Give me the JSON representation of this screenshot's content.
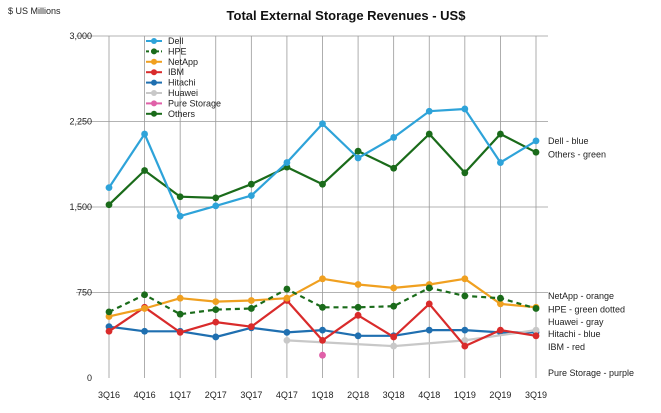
{
  "chart_data": {
    "type": "line",
    "title": "Total External Storage Revenues - US$",
    "ylabel": "$ US Millions",
    "xlabel": "",
    "ylim": [
      0,
      3000
    ],
    "yticks": [
      0,
      750,
      1500,
      2250,
      3000
    ],
    "ytick_labels": [
      "0",
      "750",
      "1,500",
      "2,250",
      "3,000"
    ],
    "categories": [
      "3Q16",
      "4Q16",
      "1Q17",
      "2Q17",
      "3Q17",
      "4Q17",
      "1Q18",
      "2Q18",
      "3Q18",
      "4Q18",
      "1Q19",
      "2Q19",
      "3Q19"
    ],
    "grid": true,
    "legend_position": "top-left",
    "series": [
      {
        "name": "Dell",
        "color": "#2ea3d9",
        "dash": false,
        "values": [
          1670,
          2140,
          1420,
          1510,
          1600,
          1890,
          2230,
          1930,
          2110,
          2340,
          2360,
          1890,
          2080
        ]
      },
      {
        "name": "HPE",
        "color": "#1a6b1a",
        "dash": true,
        "values": [
          580,
          730,
          560,
          600,
          610,
          780,
          620,
          620,
          630,
          790,
          720,
          700,
          610
        ]
      },
      {
        "name": "NetApp",
        "color": "#f0a020",
        "dash": false,
        "values": [
          540,
          610,
          700,
          670,
          680,
          700,
          870,
          820,
          790,
          820,
          870,
          650,
          620
        ]
      },
      {
        "name": "IBM",
        "color": "#d92b2b",
        "dash": false,
        "values": [
          410,
          620,
          400,
          490,
          450,
          680,
          330,
          550,
          360,
          650,
          280,
          420,
          370
        ]
      },
      {
        "name": "Hitachi",
        "color": "#1f6fb0",
        "dash": false,
        "values": [
          450,
          410,
          410,
          360,
          440,
          400,
          420,
          370,
          370,
          420,
          420,
          400,
          400
        ]
      },
      {
        "name": "Huawei",
        "color": "#c8c8c8",
        "dash": false,
        "values": [
          null,
          null,
          null,
          null,
          null,
          330,
          null,
          null,
          280,
          null,
          330,
          null,
          420
        ]
      },
      {
        "name": "Pure Storage",
        "color": "#e060a8",
        "dash": false,
        "values": [
          null,
          null,
          null,
          null,
          null,
          null,
          200,
          null,
          null,
          null,
          null,
          null,
          null
        ]
      },
      {
        "name": "Others",
        "color": "#1a6b1a",
        "dash": false,
        "values": [
          1520,
          1820,
          1590,
          1580,
          1700,
          1850,
          1700,
          1990,
          1840,
          2140,
          1800,
          2140,
          1980
        ]
      }
    ],
    "annotations": [
      {
        "text": "Dell - blue",
        "value": 2080
      },
      {
        "text": "Others - green",
        "value": 1960
      },
      {
        "text": "NetApp - orange",
        "value": 720
      },
      {
        "text": "HPE - green dotted",
        "value": 600
      },
      {
        "text": "Huawei - gray",
        "value": 490
      },
      {
        "text": "Hitachi - blue",
        "value": 385
      },
      {
        "text": "IBM - red",
        "value": 270
      },
      {
        "text": "Pure Storage - purple",
        "value": 45
      }
    ]
  }
}
